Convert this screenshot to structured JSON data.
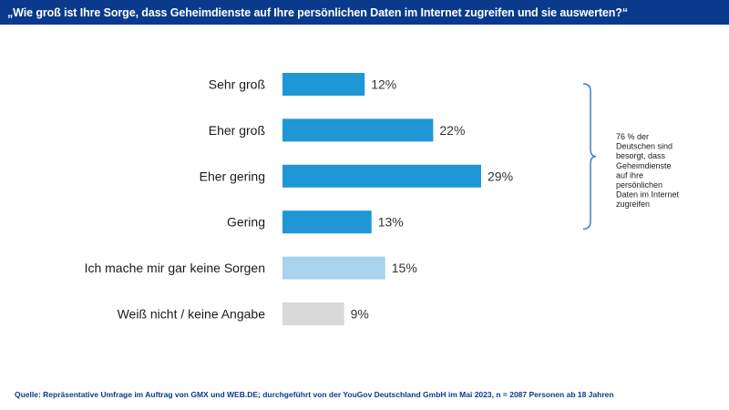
{
  "header": {
    "title": "„Wie groß ist Ihre Sorge, dass Geheimdienste auf Ihre persönlichen Daten im Internet zugreifen und sie auswerten?“"
  },
  "chart_data": {
    "type": "bar",
    "orientation": "horizontal",
    "title": "„Wie groß ist Ihre Sorge, dass Geheimdienste auf Ihre persönlichen Daten im Internet zugreifen und sie auswerten?“",
    "categories": [
      "Sehr groß",
      "Eher groß",
      "Eher gering",
      "Gering",
      "Ich mache mir gar keine Sorgen",
      "Weiß nicht / keine Angabe"
    ],
    "values": [
      12,
      22,
      29,
      13,
      15,
      9
    ],
    "value_labels": [
      "12%",
      "22%",
      "29%",
      "13%",
      "15%",
      "9%"
    ],
    "bar_colors": [
      "#1f96d6",
      "#1f96d6",
      "#1f96d6",
      "#1f96d6",
      "#a9d3ee",
      "#d9d9d9"
    ],
    "unit": "%",
    "xlim": [
      0,
      29
    ],
    "grid": false,
    "legend": "none",
    "annotation": {
      "brace_spans": [
        0,
        3
      ],
      "lines": [
        "76 % der",
        "Deutschen sind",
        "besorgt, dass",
        "Geheimdienste",
        "auf ihre",
        "persönlichen",
        "Daten im Internet",
        "zugreifen"
      ]
    }
  },
  "colors": {
    "header_bg": "#0b3a8c",
    "header_text": "#ffffff",
    "brace": "#1f6fb5",
    "footer_text": "#0b3a8c"
  },
  "footer": {
    "source": "Quelle: Repräsentative Umfrage im Auftrag von GMX und WEB.DE; durchgeführt von der YouGov Deutschland GmbH im Mai 2023, n = 2087 Personen ab 18 Jahren"
  }
}
